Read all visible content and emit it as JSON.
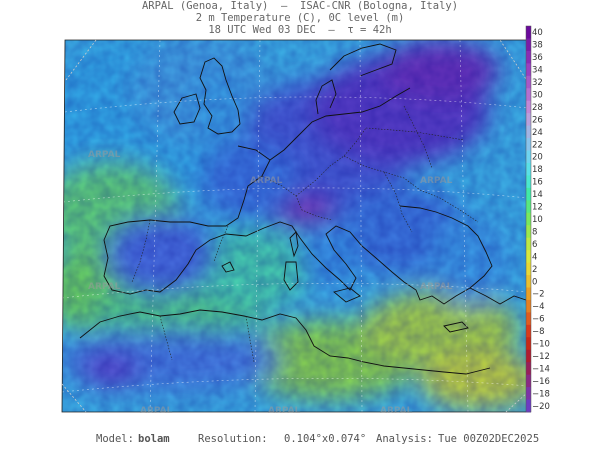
{
  "header": {
    "line1": "ARPAL (Genoa, Italy)  —  ISAC-CNR (Bologna, Italy)",
    "line2": "2 m Temperature (C), 0C level (m)",
    "line3": "18 UTC Wed 03 DEC  —  τ = 42h"
  },
  "colorbar": {
    "labels": [
      "40",
      "38",
      "36",
      "34",
      "32",
      "30",
      "28",
      "26",
      "24",
      "22",
      "20",
      "18",
      "16",
      "14",
      "12",
      "10",
      "8",
      "6",
      "4",
      "2",
      "0",
      "−2",
      "−4",
      "−6",
      "−8",
      "−10",
      "−12",
      "−14",
      "−16",
      "−18",
      "−20"
    ],
    "colors": [
      "#6a0a9c",
      "#7a1ca8",
      "#8a2cb4",
      "#9a40c0",
      "#a858c8",
      "#b470d0",
      "#c088d6",
      "#b8a0dc",
      "#a0b4e4",
      "#88c4ec",
      "#6fd4f0",
      "#5ae0e8",
      "#4ae8d0",
      "#40eaa8",
      "#58e880",
      "#78e860",
      "#9ae850",
      "#bce848",
      "#d8e840",
      "#e6d838",
      "#e8c030",
      "#e8a028",
      "#e48024",
      "#e05c20",
      "#d83a1c",
      "#c82818",
      "#b01c30",
      "#98205a",
      "#8a2a84",
      "#7c34a8",
      "#6c3cc4"
    ]
  },
  "watermark": "ARPAL",
  "footer": {
    "model_label": "Model:",
    "model_value": "bolam",
    "resolution_label": "Resolution:",
    "resolution_value": "0.104°x0.074°",
    "analysis_label": "Analysis:",
    "analysis_value": "Tue 00Z02DEC2025"
  }
}
